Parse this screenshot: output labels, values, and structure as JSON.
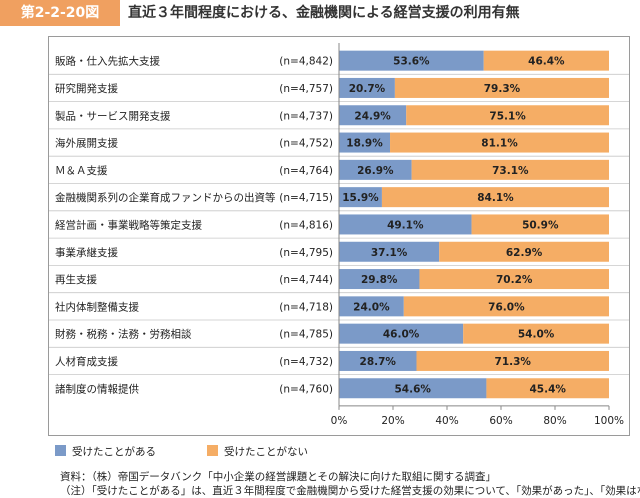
{
  "header": {
    "figure_label": "第2-2-20図",
    "title": "直近３年間程度における、金融機関による経営支援の利用有無"
  },
  "colors": {
    "received": "#7b9ac8",
    "not_received": "#f5ad65"
  },
  "legend": {
    "received": "受けたことがある",
    "not_received": "受けたことがない"
  },
  "axis": {
    "ticks": [
      "0%",
      "20%",
      "40%",
      "60%",
      "80%",
      "100%"
    ]
  },
  "chart_data": {
    "type": "bar",
    "orientation": "horizontal-stacked-100",
    "categories": [
      "販路・仕入先拡大支援",
      "研究開発支援",
      "製品・サービス開発支援",
      "海外展開支援",
      "Ｍ＆Ａ支援",
      "金融機関系列の企業育成ファンドからの出資等",
      "経営計画・事業戦略等策定支援",
      "事業承継支援",
      "再生支援",
      "社内体制整備支援",
      "財務・税務・法務・労務相談",
      "人材育成支援",
      "諸制度の情報提供"
    ],
    "n_labels": [
      "(n=4,842)",
      "(n=4,757)",
      "(n=4,737)",
      "(n=4,752)",
      "(n=4,764)",
      "(n=4,715)",
      "(n=4,816)",
      "(n=4,795)",
      "(n=4,744)",
      "(n=4,718)",
      "(n=4,785)",
      "(n=4,732)",
      "(n=4,760)"
    ],
    "series": [
      {
        "name": "受けたことがある",
        "values": [
          53.6,
          20.7,
          24.9,
          18.9,
          26.9,
          15.9,
          49.1,
          37.1,
          29.8,
          24.0,
          46.0,
          28.7,
          54.6
        ]
      },
      {
        "name": "受けたことがない",
        "values": [
          46.4,
          79.3,
          75.1,
          81.1,
          73.1,
          84.1,
          50.9,
          62.9,
          70.2,
          76.0,
          54.0,
          71.3,
          45.4
        ]
      }
    ],
    "xlim": [
      0,
      100
    ],
    "grid": false,
    "legend_position": "bottom-left"
  },
  "source": {
    "line1": "資料：（株）帝国データバンク「中小企業の経営課題とその解決に向けた取組に関する調査」",
    "line2": "（注）「受けたことがある」は、直近３年間程度で金融機関から受けた経営支援の効果について、「効果があった」、「効果はなかっ"
  }
}
